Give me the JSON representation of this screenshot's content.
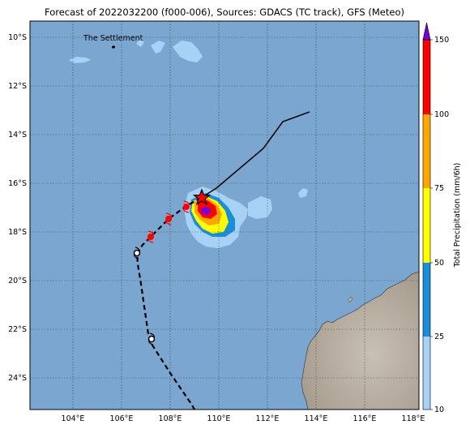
{
  "title": "Forecast of 2022032200 (f000-006), Sources: GDACS (TC track), GFS (Meteo)",
  "place_label": "The Settlement",
  "lat_ticks": [
    "10°S",
    "12°S",
    "14°S",
    "16°S",
    "18°S",
    "20°S",
    "22°S",
    "24°S"
  ],
  "lon_ticks": [
    "104°E",
    "106°E",
    "108°E",
    "110°E",
    "112°E",
    "114°E",
    "116°E",
    "118°E"
  ],
  "colorbar": {
    "label": "Total Precipitation (mm/6h)",
    "ticks": [
      "10",
      "25",
      "50",
      "75",
      "100",
      "150"
    ],
    "colors": [
      "#a8d2f5",
      "#1a8fd8",
      "#ffff00",
      "#ffa500",
      "#ff0000",
      "#7b00d4"
    ]
  },
  "colors": {
    "ocean": "#7aa6cf",
    "land": "#b8b0a4",
    "track_past": "#000000",
    "storm_symbol": "#ff0000"
  }
}
